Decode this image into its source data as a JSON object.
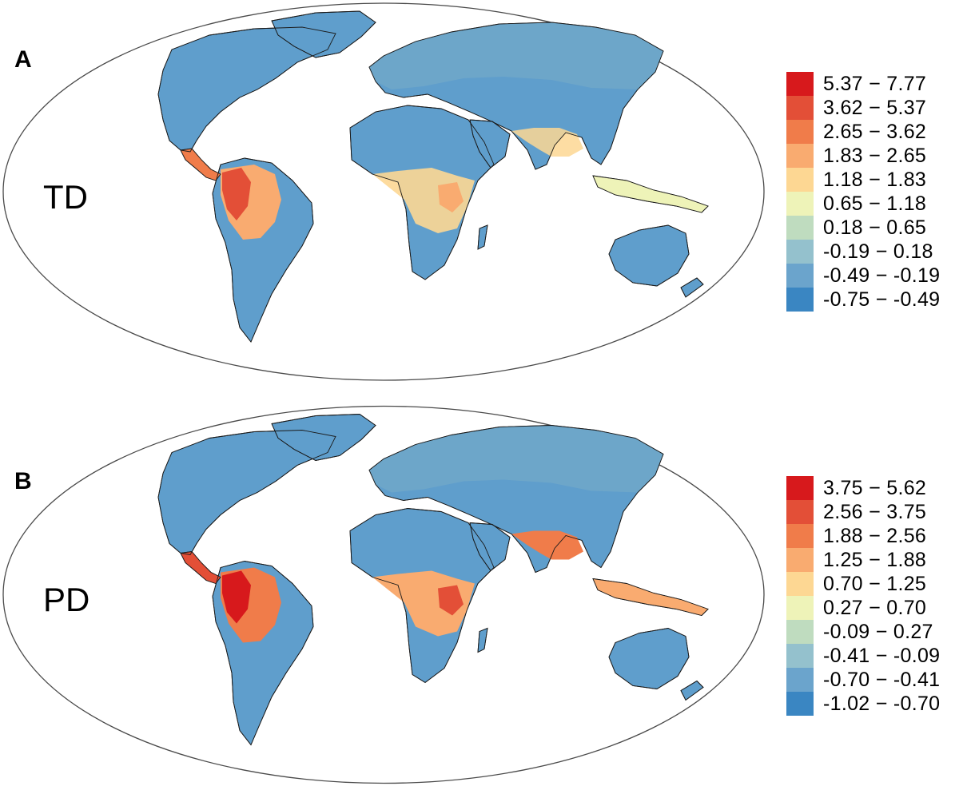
{
  "panels": [
    {
      "letter": "A",
      "variable": "TD",
      "legend": [
        {
          "label": "5.37 − 7.77",
          "color": "#d7191c"
        },
        {
          "label": "3.62 − 5.37",
          "color": "#e34f37"
        },
        {
          "label": "2.65 − 3.62",
          "color": "#f07c4a"
        },
        {
          "label": "1.83 − 2.65",
          "color": "#f9ab70"
        },
        {
          "label": "1.18 − 1.83",
          "color": "#fdd793"
        },
        {
          "label": "0.65 − 1.18",
          "color": "#eef3b8"
        },
        {
          "label": "0.18 − 0.65",
          "color": "#bfdcbf"
        },
        {
          "label": "-0.19 − 0.18",
          "color": "#94c1cd"
        },
        {
          "label": "-0.49 − -0.19",
          "color": "#6ba4cc"
        },
        {
          "label": "-0.75 − -0.49",
          "color": "#3a86c2"
        }
      ]
    },
    {
      "letter": "B",
      "variable": "PD",
      "legend": [
        {
          "label": "3.75 − 5.62",
          "color": "#d7191c"
        },
        {
          "label": "2.56 − 3.75",
          "color": "#e34f37"
        },
        {
          "label": "1.88 − 2.56",
          "color": "#f07c4a"
        },
        {
          "label": "1.25 − 1.88",
          "color": "#f9ab70"
        },
        {
          "label": "0.70 − 1.25",
          "color": "#fdd793"
        },
        {
          "label": "0.27 − 0.70",
          "color": "#eef3b8"
        },
        {
          "label": "-0.09 − 0.27",
          "color": "#bfdcbf"
        },
        {
          "label": "-0.41 − -0.09",
          "color": "#94c1cd"
        },
        {
          "label": "-0.70 − -0.41",
          "color": "#6ba4cc"
        },
        {
          "label": "-1.02 − -0.70",
          "color": "#3a86c2"
        }
      ]
    }
  ]
}
